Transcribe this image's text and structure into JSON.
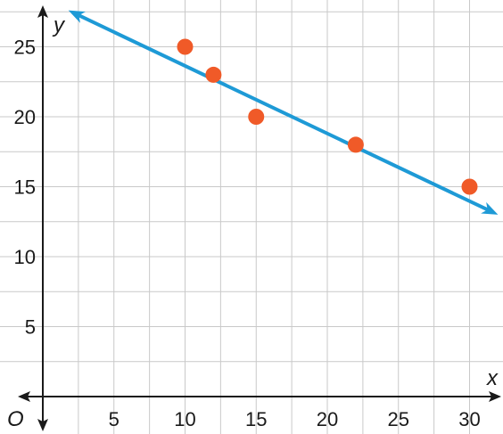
{
  "chart_data": {
    "type": "scatter",
    "title": "",
    "xlabel": "x",
    "ylabel": "y",
    "origin_label": "O",
    "xlim": [
      0,
      32
    ],
    "ylim": [
      0,
      27.5
    ],
    "grid": true,
    "x_ticks": [
      5,
      10,
      15,
      20,
      25,
      30
    ],
    "y_ticks": [
      5,
      10,
      15,
      20,
      25
    ],
    "x_tick_labels": [
      "5",
      "10",
      "15",
      "20",
      "25",
      "30"
    ],
    "y_tick_labels": [
      "5",
      "10",
      "15",
      "20",
      "25"
    ],
    "points": [
      {
        "x": 10,
        "y": 25
      },
      {
        "x": 12,
        "y": 23
      },
      {
        "x": 15,
        "y": 20
      },
      {
        "x": 22,
        "y": 18
      },
      {
        "x": 30,
        "y": 15
      }
    ],
    "trend_line": {
      "start": {
        "x": 1.8,
        "y": 27.6
      },
      "end": {
        "x": 32,
        "y": 13
      }
    },
    "point_color": "#f05a28",
    "line_color": "#1e9ad6",
    "axis_color": "#1a1a1a",
    "grid_color": "#c9c9c9"
  }
}
